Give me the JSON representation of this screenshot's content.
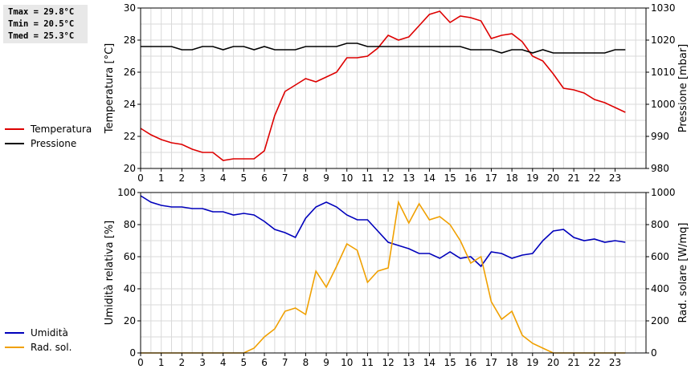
{
  "stats": {
    "tmax": "Tmax = 29.8°C",
    "tmin": "Tmin = 20.5°C",
    "tmed": "Tmed = 25.3°C"
  },
  "legend_top": [
    {
      "label": "Temperatura",
      "color": "#dd0000"
    },
    {
      "label": "Pressione",
      "color": "#000000"
    }
  ],
  "legend_bottom": [
    {
      "label": "Umidità",
      "color": "#0000bb"
    },
    {
      "label": "Rad. sol.",
      "color": "#f0a000"
    }
  ],
  "chart_data": [
    {
      "type": "line",
      "x_ticks": [
        "0",
        "1",
        "2",
        "3",
        "4",
        "5",
        "6",
        "7",
        "8",
        "9",
        "10",
        "11",
        "12",
        "13",
        "14",
        "15",
        "16",
        "17",
        "18",
        "19",
        "20",
        "21",
        "22",
        "23"
      ],
      "xlim": [
        0,
        24.5
      ],
      "ylabel": "Temperatura [°C]",
      "ylim": [
        20,
        30
      ],
      "y_ticks": [
        "20",
        "22",
        "24",
        "26",
        "28",
        "30"
      ],
      "ylabel_right": "Pressione [mbar]",
      "ylim_right": [
        980,
        1030
      ],
      "y_ticks_right": [
        "980",
        "990",
        "1000",
        "1010",
        "1020",
        "1030"
      ],
      "grid": true,
      "series": [
        {
          "name": "Temperatura",
          "axis": "left",
          "color": "#dd0000",
          "x": [
            0,
            0.5,
            1,
            1.5,
            2,
            2.5,
            3,
            3.5,
            4,
            4.5,
            5,
            5.5,
            6,
            6.5,
            7,
            7.5,
            8,
            8.5,
            9,
            9.5,
            10,
            10.5,
            11,
            11.5,
            12,
            12.5,
            13,
            13.5,
            14,
            14.25,
            14.5,
            15,
            15.5,
            16,
            16.5,
            17,
            17.5,
            18,
            18.5,
            19,
            19.5,
            20,
            20.5,
            21,
            21.5,
            22,
            22.5,
            23,
            23.5
          ],
          "y": [
            22.5,
            22.1,
            21.8,
            21.6,
            21.5,
            21.2,
            21.0,
            21.0,
            20.5,
            20.6,
            20.6,
            20.6,
            21.1,
            23.3,
            24.8,
            25.2,
            25.6,
            25.4,
            25.7,
            26.0,
            26.9,
            26.9,
            27.0,
            27.5,
            28.3,
            28.0,
            28.2,
            28.9,
            29.6,
            29.7,
            29.8,
            29.1,
            29.5,
            29.4,
            29.2,
            28.1,
            28.3,
            28.4,
            27.9,
            27.0,
            26.7,
            25.9,
            25.0,
            24.9,
            24.7,
            24.3,
            24.1,
            23.8,
            23.5
          ]
        },
        {
          "name": "Pressione",
          "axis": "right",
          "color": "#000000",
          "x": [
            0,
            0.5,
            1,
            1.5,
            2,
            2.5,
            3,
            3.5,
            4,
            4.5,
            5,
            5.5,
            6,
            6.5,
            7,
            7.5,
            8,
            8.5,
            9,
            9.5,
            10,
            10.5,
            11,
            11.5,
            12,
            12.5,
            13,
            13.5,
            14,
            14.5,
            15,
            15.5,
            16,
            16.5,
            17,
            17.5,
            18,
            18.5,
            19,
            19.5,
            20,
            20.5,
            21,
            21.5,
            22,
            22.5,
            23,
            23.5
          ],
          "y": [
            1018,
            1018,
            1018,
            1018,
            1017,
            1017,
            1018,
            1018,
            1017,
            1018,
            1018,
            1017,
            1018,
            1017,
            1017,
            1017,
            1018,
            1018,
            1018,
            1018,
            1019,
            1019,
            1018,
            1018,
            1018,
            1018,
            1018,
            1018,
            1018,
            1018,
            1018,
            1018,
            1017,
            1017,
            1017,
            1016,
            1017,
            1017,
            1016,
            1017,
            1016,
            1016,
            1016,
            1016,
            1016,
            1016,
            1017,
            1017
          ]
        }
      ]
    },
    {
      "type": "line",
      "x_ticks": [
        "0",
        "1",
        "2",
        "3",
        "4",
        "5",
        "6",
        "7",
        "8",
        "9",
        "10",
        "11",
        "12",
        "13",
        "14",
        "15",
        "16",
        "17",
        "18",
        "19",
        "20",
        "21",
        "22",
        "23"
      ],
      "xlim": [
        0,
        24.5
      ],
      "ylabel": "Umidità relativa [%]",
      "ylim": [
        0,
        100
      ],
      "y_ticks": [
        "0",
        "20",
        "40",
        "60",
        "80",
        "100"
      ],
      "ylabel_right": "Rad. solare [W/mq]",
      "ylim_right": [
        0,
        1000
      ],
      "y_ticks_right": [
        "0",
        "200",
        "400",
        "600",
        "800",
        "1000"
      ],
      "grid": true,
      "series": [
        {
          "name": "Umidità",
          "axis": "left",
          "color": "#0000bb",
          "x": [
            0,
            0.5,
            1,
            1.5,
            2,
            2.5,
            3,
            3.5,
            4,
            4.5,
            5,
            5.5,
            6,
            6.5,
            7,
            7.5,
            8,
            8.5,
            9,
            9.5,
            10,
            10.5,
            11,
            11.5,
            12,
            12.5,
            13,
            13.5,
            14,
            14.5,
            15,
            15.5,
            16,
            16.5,
            17,
            17.5,
            18,
            18.5,
            19,
            19.5,
            20,
            20.5,
            21,
            21.5,
            22,
            22.5,
            23,
            23.5
          ],
          "y": [
            98,
            94,
            92,
            91,
            91,
            90,
            90,
            88,
            88,
            86,
            87,
            86,
            82,
            77,
            75,
            72,
            84,
            91,
            94,
            91,
            86,
            83,
            83,
            76,
            69,
            67,
            65,
            62,
            62,
            59,
            63,
            59,
            60,
            54,
            63,
            62,
            59,
            61,
            62,
            70,
            76,
            77,
            72,
            70,
            71,
            69,
            70,
            69
          ]
        },
        {
          "name": "Rad. sol.",
          "axis": "right",
          "color": "#f0a000",
          "x": [
            0,
            0.5,
            1,
            1.5,
            2,
            2.5,
            3,
            3.5,
            4,
            4.5,
            5,
            5.5,
            6,
            6.5,
            7,
            7.5,
            8,
            8.5,
            9,
            9.5,
            10,
            10.5,
            11,
            11.5,
            12,
            12.5,
            13,
            13.5,
            14,
            14.5,
            15,
            15.5,
            16,
            16.5,
            17,
            17.5,
            18,
            18.5,
            19,
            19.5,
            20,
            20.5,
            21,
            21.5,
            22,
            22.5,
            23,
            23.5
          ],
          "y": [
            0,
            0,
            0,
            0,
            0,
            0,
            0,
            0,
            0,
            0,
            0,
            30,
            100,
            150,
            260,
            280,
            240,
            510,
            410,
            540,
            680,
            640,
            440,
            510,
            530,
            940,
            810,
            930,
            830,
            850,
            800,
            700,
            560,
            600,
            320,
            210,
            260,
            110,
            60,
            30,
            0,
            0,
            0,
            0,
            0,
            0,
            0,
            0
          ]
        }
      ]
    }
  ]
}
